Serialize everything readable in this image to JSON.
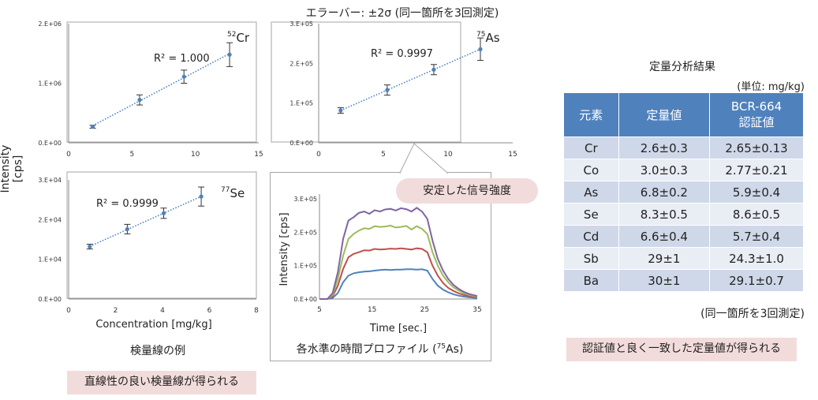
{
  "header_note": "エラーバー: ±2σ (同一箇所を3回測定)",
  "shared_ylabel": "Intensity [cps]",
  "calib_caption": "検量線の例",
  "calib_conclusion": "直線性の良い検量線が得られる",
  "time_caption": "各水準の時間プロファイル (",
  "time_caption_sup": "75",
  "time_caption_tail": "As)",
  "stable_callout": "安定した信号強度",
  "table_title": "定量分析結果",
  "table_unit": "(単位: mg/kg)",
  "table_note": "(同一箇所を3回測定)",
  "table_conclusion": "認証値と良く一致した定量値が得られる",
  "table": {
    "headers": [
      "元素",
      "定量値",
      "BCR-664",
      "認証値"
    ],
    "rows": [
      [
        "Cr",
        "2.6±0.3",
        "2.65±0.13"
      ],
      [
        "Co",
        "3.0±0.3",
        "2.77±0.21"
      ],
      [
        "As",
        "6.8±0.2",
        "5.9±0.4"
      ],
      [
        "Se",
        "8.3±0.5",
        "8.6±0.5"
      ],
      [
        "Cd",
        "6.6±0.4",
        "5.7±0.4"
      ],
      [
        "Sb",
        "29±1",
        "24.3±1.0"
      ],
      [
        "Ba",
        "30±1",
        "29.1±0.7"
      ]
    ]
  },
  "chart_data": [
    {
      "id": "cr",
      "type": "scatter",
      "isotope_mass": "52",
      "element": "Cr",
      "r2_label": "R² = 1.000",
      "x": [
        1.9,
        5.6,
        9.1,
        12.7
      ],
      "y": [
        270000,
        720000,
        1110000,
        1480000
      ],
      "err": [
        25000,
        85000,
        110000,
        200000
      ],
      "xlim": [
        0,
        15
      ],
      "ylim": [
        0,
        2000000
      ],
      "xticks": [
        "0",
        "5",
        "10",
        "15"
      ],
      "yticks": [
        "0.E+00",
        "1.E+06",
        "2.E+06"
      ],
      "marker_color": "#4f81bd",
      "trend_color": "#4f81bd"
    },
    {
      "id": "as",
      "type": "scatter",
      "isotope_mass": "75",
      "element": "As",
      "r2_label": "R² = 0.9997",
      "x": [
        1.7,
        5.3,
        8.9,
        12.5
      ],
      "y": [
        95000,
        155000,
        215000,
        275000
      ],
      "err": [
        8000,
        15000,
        15000,
        33000
      ],
      "xlim": [
        0,
        15
      ],
      "ylim": [
        0,
        350000
      ],
      "xticks": [
        "0",
        "5",
        "10",
        "15"
      ],
      "yticks": [
        "0.E+00",
        "1.E+05",
        "2.E+05",
        "3.E+05"
      ],
      "marker_color": "#4f81bd",
      "trend_color": "#4f81bd"
    },
    {
      "id": "se",
      "type": "scatter",
      "isotope_mass": "77",
      "element": "Se",
      "r2_label": "R² = 0.9999",
      "xlabel": "Concentration [mg/kg]",
      "x": [
        0.9,
        2.5,
        4.05,
        5.65
      ],
      "y": [
        13200,
        17600,
        21600,
        25800
      ],
      "err": [
        600,
        1200,
        1300,
        2400
      ],
      "xlim": [
        0,
        8
      ],
      "ylim": [
        0,
        30000
      ],
      "xticks": [
        "0",
        "2",
        "4",
        "6",
        "8"
      ],
      "yticks": [
        "0.E+00",
        "1.E+04",
        "2.E+04",
        "3.E+04"
      ],
      "marker_color": "#4f81bd",
      "trend_color": "#4f81bd"
    },
    {
      "id": "time",
      "type": "line",
      "xlabel": "Time [sec.]",
      "ylabel": "Intensity [cps]",
      "xlim": [
        5,
        35
      ],
      "ylim": [
        0,
        300000
      ],
      "xticks": [
        "5",
        "15",
        "25",
        "35"
      ],
      "yticks": [
        "0.E+00",
        "1.E+05",
        "2.E+05",
        "3.E+05"
      ],
      "x": [
        5,
        6.5,
        7.5,
        8.5,
        9.5,
        10.5,
        11.5,
        12.5,
        13.5,
        14.5,
        15.5,
        16.5,
        17.5,
        18.5,
        19.5,
        20.5,
        21.5,
        22.5,
        23.5,
        24.5,
        25.5,
        26.5,
        27.5,
        28.5,
        29.5,
        30.5,
        31.5,
        32.5,
        33.5,
        35
      ],
      "series": [
        {
          "color": "#4f81bd",
          "values": [
            0,
            0,
            3000,
            18000,
            50000,
            70000,
            77000,
            80000,
            82000,
            83000,
            85000,
            87000,
            88000,
            87000,
            88000,
            88000,
            89000,
            89000,
            88000,
            89000,
            85000,
            60000,
            40000,
            28000,
            20000,
            14000,
            10000,
            7000,
            5000,
            3000
          ]
        },
        {
          "color": "#c0504d",
          "values": [
            0,
            0,
            8000,
            40000,
            90000,
            125000,
            135000,
            140000,
            146000,
            145000,
            150000,
            148000,
            149000,
            151000,
            150000,
            152000,
            150000,
            148000,
            152000,
            150000,
            140000,
            100000,
            70000,
            48000,
            33000,
            24000,
            17000,
            12000,
            9000,
            5000
          ]
        },
        {
          "color": "#9bbb59",
          "values": [
            0,
            0,
            12000,
            60000,
            130000,
            180000,
            195000,
            205000,
            212000,
            210000,
            218000,
            216000,
            217000,
            220000,
            214000,
            216000,
            219000,
            208000,
            218000,
            210000,
            195000,
            140000,
            100000,
            70000,
            50000,
            35000,
            25000,
            17000,
            12000,
            7000
          ]
        },
        {
          "color": "#8064a2",
          "values": [
            0,
            0,
            18000,
            80000,
            180000,
            235000,
            245000,
            258000,
            262000,
            255000,
            266000,
            262000,
            268000,
            270000,
            265000,
            272000,
            269000,
            262000,
            273000,
            262000,
            240000,
            175000,
            120000,
            85000,
            60000,
            42000,
            30000,
            21000,
            15000,
            9000
          ]
        }
      ]
    }
  ]
}
